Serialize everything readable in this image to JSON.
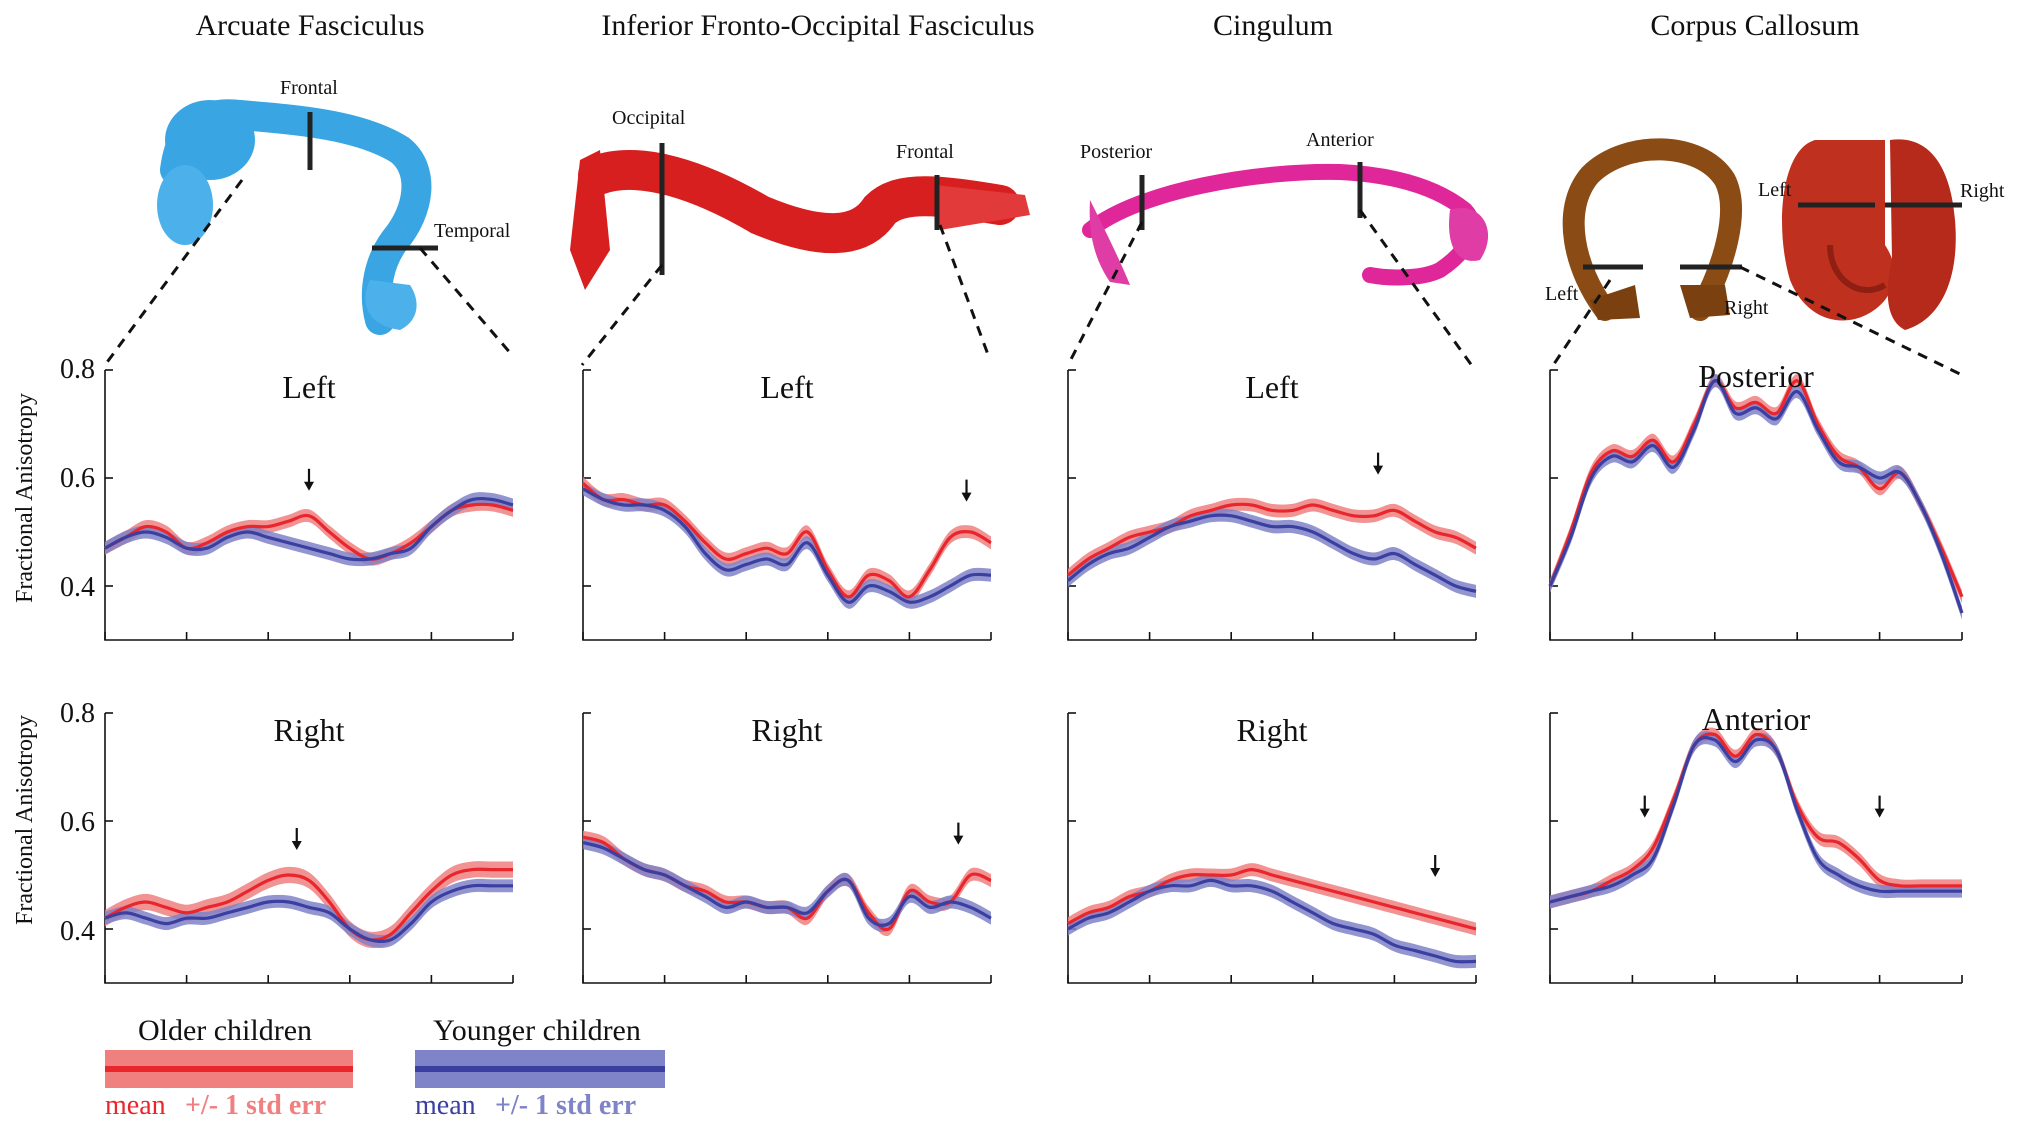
{
  "figure": {
    "ylabel": "Fractional Anisotropy",
    "y_ticks": [
      "0.8",
      "0.6",
      "0.4"
    ]
  },
  "tracts": [
    {
      "title": "Arcuate Fasciculus",
      "color": "#39a6e3",
      "labels": [
        "Frontal",
        "Temporal"
      ]
    },
    {
      "title": "Inferior Fronto-Occipital Fasciculus",
      "color": "#d81f1f",
      "labels": [
        "Occipital",
        "Frontal"
      ]
    },
    {
      "title": "Cingulum",
      "color": "#e0279a",
      "labels": [
        "Posterior",
        "Anterior"
      ]
    },
    {
      "title": "Corpus Callosum",
      "color": "#8a4b14",
      "color2": "#c0301e",
      "labels": [
        "Left",
        "Right",
        "Left",
        "Right"
      ]
    }
  ],
  "legend": {
    "older": {
      "label": "Older children",
      "caption_mean": "mean",
      "caption_err": "+/- 1 std err",
      "color": "#e8262c",
      "band_color": "#f08080"
    },
    "younger": {
      "label": "Younger children",
      "caption_mean": "mean",
      "caption_err": "+/- 1 std err",
      "color": "#3a3fa0",
      "band_color": "#7f83c8"
    }
  },
  "chart_data": [
    {
      "type": "line",
      "title": "Left",
      "tract": "Arcuate Fasciculus",
      "ylim": [
        0.3,
        0.8
      ],
      "x": [
        0,
        5,
        10,
        15,
        20,
        25,
        30,
        35,
        40,
        45,
        50,
        55,
        60,
        65,
        70,
        75,
        80,
        85,
        90,
        95,
        100
      ],
      "series": [
        {
          "name": "Older children",
          "values": [
            0.47,
            0.49,
            0.51,
            0.5,
            0.47,
            0.48,
            0.5,
            0.51,
            0.51,
            0.52,
            0.53,
            0.5,
            0.47,
            0.45,
            0.46,
            0.48,
            0.51,
            0.54,
            0.55,
            0.55,
            0.54
          ],
          "err": 0.012
        },
        {
          "name": "Younger children",
          "values": [
            0.47,
            0.49,
            0.5,
            0.49,
            0.47,
            0.47,
            0.49,
            0.5,
            0.49,
            0.48,
            0.47,
            0.46,
            0.45,
            0.45,
            0.46,
            0.47,
            0.51,
            0.54,
            0.56,
            0.56,
            0.55
          ],
          "err": 0.012
        }
      ],
      "annotations": [
        {
          "type": "arrow",
          "x": 50,
          "y": 0.58
        }
      ]
    },
    {
      "type": "line",
      "title": "Left",
      "tract": "Inferior Fronto-Occipital Fasciculus",
      "ylim": [
        0.3,
        0.8
      ],
      "x": [
        0,
        5,
        10,
        15,
        20,
        25,
        30,
        35,
        40,
        45,
        50,
        55,
        60,
        65,
        70,
        75,
        80,
        85,
        90,
        95,
        100
      ],
      "series": [
        {
          "name": "Older children",
          "values": [
            0.59,
            0.56,
            0.56,
            0.55,
            0.55,
            0.52,
            0.48,
            0.45,
            0.46,
            0.47,
            0.46,
            0.5,
            0.43,
            0.38,
            0.42,
            0.41,
            0.38,
            0.43,
            0.49,
            0.5,
            0.48
          ],
          "err": 0.012
        },
        {
          "name": "Younger children",
          "values": [
            0.58,
            0.56,
            0.55,
            0.55,
            0.54,
            0.51,
            0.46,
            0.43,
            0.44,
            0.45,
            0.44,
            0.48,
            0.42,
            0.37,
            0.4,
            0.39,
            0.37,
            0.38,
            0.4,
            0.42,
            0.42
          ],
          "err": 0.012
        }
      ],
      "annotations": [
        {
          "type": "arrow",
          "x": 94,
          "y": 0.56
        }
      ]
    },
    {
      "type": "line",
      "title": "Left",
      "tract": "Cingulum",
      "ylim": [
        0.3,
        0.8
      ],
      "x": [
        0,
        5,
        10,
        15,
        20,
        25,
        30,
        35,
        40,
        45,
        50,
        55,
        60,
        65,
        70,
        75,
        80,
        85,
        90,
        95,
        100
      ],
      "series": [
        {
          "name": "Older children",
          "values": [
            0.42,
            0.45,
            0.47,
            0.49,
            0.5,
            0.51,
            0.53,
            0.54,
            0.55,
            0.55,
            0.54,
            0.54,
            0.55,
            0.54,
            0.53,
            0.53,
            0.54,
            0.52,
            0.5,
            0.49,
            0.47
          ],
          "err": 0.012
        },
        {
          "name": "Younger children",
          "values": [
            0.41,
            0.44,
            0.46,
            0.47,
            0.49,
            0.51,
            0.52,
            0.53,
            0.53,
            0.52,
            0.51,
            0.51,
            0.5,
            0.48,
            0.46,
            0.45,
            0.46,
            0.44,
            0.42,
            0.4,
            0.39
          ],
          "err": 0.012
        }
      ],
      "annotations": [
        {
          "type": "arrow",
          "x": 76,
          "y": 0.61
        }
      ]
    },
    {
      "type": "line",
      "title": "Posterior",
      "tract": "Corpus Callosum",
      "ylim": [
        0.3,
        0.8
      ],
      "x": [
        0,
        5,
        10,
        15,
        20,
        25,
        30,
        35,
        40,
        45,
        50,
        55,
        60,
        65,
        70,
        75,
        80,
        85,
        90,
        95,
        100
      ],
      "series": [
        {
          "name": "Older children",
          "values": [
            0.4,
            0.5,
            0.61,
            0.65,
            0.64,
            0.67,
            0.63,
            0.7,
            0.78,
            0.73,
            0.74,
            0.72,
            0.78,
            0.7,
            0.64,
            0.62,
            0.58,
            0.61,
            0.55,
            0.47,
            0.38
          ],
          "err": 0.012
        },
        {
          "name": "Younger children",
          "values": [
            0.4,
            0.49,
            0.6,
            0.64,
            0.63,
            0.66,
            0.62,
            0.69,
            0.78,
            0.72,
            0.73,
            0.71,
            0.76,
            0.69,
            0.63,
            0.62,
            0.6,
            0.61,
            0.55,
            0.46,
            0.35
          ],
          "err": 0.012
        }
      ]
    },
    {
      "type": "line",
      "title": "Right",
      "tract": "Arcuate Fasciculus",
      "ylim": [
        0.3,
        0.8
      ],
      "x": [
        0,
        5,
        10,
        15,
        20,
        25,
        30,
        35,
        40,
        45,
        50,
        55,
        60,
        65,
        70,
        75,
        80,
        85,
        90,
        95,
        100
      ],
      "series": [
        {
          "name": "Older children",
          "values": [
            0.42,
            0.44,
            0.45,
            0.44,
            0.43,
            0.44,
            0.45,
            0.47,
            0.49,
            0.5,
            0.49,
            0.45,
            0.4,
            0.38,
            0.39,
            0.43,
            0.47,
            0.5,
            0.51,
            0.51,
            0.51
          ],
          "err": 0.015
        },
        {
          "name": "Younger children",
          "values": [
            0.42,
            0.43,
            0.42,
            0.41,
            0.42,
            0.42,
            0.43,
            0.44,
            0.45,
            0.45,
            0.44,
            0.43,
            0.4,
            0.38,
            0.38,
            0.41,
            0.45,
            0.47,
            0.48,
            0.48,
            0.48
          ],
          "err": 0.012
        }
      ],
      "annotations": [
        {
          "type": "arrow",
          "x": 47,
          "y": 0.55
        }
      ]
    },
    {
      "type": "line",
      "title": "Right",
      "tract": "Inferior Fronto-Occipital Fasciculus",
      "ylim": [
        0.3,
        0.8
      ],
      "x": [
        0,
        5,
        10,
        15,
        20,
        25,
        30,
        35,
        40,
        45,
        50,
        55,
        60,
        65,
        70,
        75,
        80,
        85,
        90,
        95,
        100
      ],
      "series": [
        {
          "name": "Older children",
          "values": [
            0.57,
            0.56,
            0.53,
            0.51,
            0.5,
            0.48,
            0.47,
            0.45,
            0.45,
            0.44,
            0.44,
            0.42,
            0.47,
            0.49,
            0.43,
            0.4,
            0.47,
            0.45,
            0.45,
            0.5,
            0.49
          ],
          "err": 0.012
        },
        {
          "name": "Younger children",
          "values": [
            0.56,
            0.55,
            0.53,
            0.51,
            0.5,
            0.48,
            0.46,
            0.44,
            0.45,
            0.44,
            0.44,
            0.43,
            0.47,
            0.49,
            0.42,
            0.41,
            0.46,
            0.44,
            0.45,
            0.44,
            0.42
          ],
          "err": 0.012
        }
      ],
      "annotations": [
        {
          "type": "arrow",
          "x": 92,
          "y": 0.56
        }
      ]
    },
    {
      "type": "line",
      "title": "Right",
      "tract": "Cingulum",
      "ylim": [
        0.3,
        0.8
      ],
      "x": [
        0,
        5,
        10,
        15,
        20,
        25,
        30,
        35,
        40,
        45,
        50,
        55,
        60,
        65,
        70,
        75,
        80,
        85,
        90,
        95,
        100
      ],
      "series": [
        {
          "name": "Older children",
          "values": [
            0.41,
            0.43,
            0.44,
            0.46,
            0.47,
            0.49,
            0.5,
            0.5,
            0.5,
            0.51,
            0.5,
            0.49,
            0.48,
            0.47,
            0.46,
            0.45,
            0.44,
            0.43,
            0.42,
            0.41,
            0.4
          ],
          "err": 0.012
        },
        {
          "name": "Younger children",
          "values": [
            0.4,
            0.42,
            0.43,
            0.45,
            0.47,
            0.48,
            0.48,
            0.49,
            0.48,
            0.48,
            0.47,
            0.45,
            0.43,
            0.41,
            0.4,
            0.39,
            0.37,
            0.36,
            0.35,
            0.34,
            0.34
          ],
          "err": 0.012
        }
      ],
      "annotations": [
        {
          "type": "arrow",
          "x": 90,
          "y": 0.5
        }
      ]
    },
    {
      "type": "line",
      "title": "Anterior",
      "tract": "Corpus Callosum",
      "ylim": [
        0.3,
        0.8
      ],
      "x": [
        0,
        5,
        10,
        15,
        20,
        25,
        30,
        35,
        40,
        45,
        50,
        55,
        60,
        65,
        70,
        75,
        80,
        85,
        90,
        95,
        100
      ],
      "series": [
        {
          "name": "Older children",
          "values": [
            0.45,
            0.46,
            0.47,
            0.49,
            0.51,
            0.55,
            0.64,
            0.74,
            0.76,
            0.72,
            0.76,
            0.73,
            0.63,
            0.57,
            0.56,
            0.53,
            0.49,
            0.48,
            0.48,
            0.48,
            0.48
          ],
          "err": 0.012
        },
        {
          "name": "Younger children",
          "values": [
            0.45,
            0.46,
            0.47,
            0.48,
            0.5,
            0.53,
            0.63,
            0.74,
            0.75,
            0.71,
            0.75,
            0.73,
            0.62,
            0.53,
            0.5,
            0.48,
            0.47,
            0.47,
            0.47,
            0.47,
            0.47
          ],
          "err": 0.012
        }
      ],
      "annotations": [
        {
          "type": "arrow",
          "x": 23,
          "y": 0.61
        },
        {
          "type": "arrow",
          "x": 80,
          "y": 0.61
        }
      ]
    }
  ]
}
